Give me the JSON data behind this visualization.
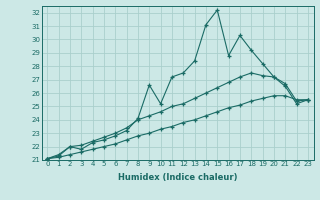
{
  "xlabel": "Humidex (Indice chaleur)",
  "background_color": "#cce8e6",
  "grid_color": "#aacfcc",
  "line_color": "#1a6b65",
  "xlim": [
    -0.5,
    23.5
  ],
  "ylim": [
    21,
    32.5
  ],
  "xticks": [
    0,
    1,
    2,
    3,
    4,
    5,
    6,
    7,
    8,
    9,
    10,
    11,
    12,
    13,
    14,
    15,
    16,
    17,
    18,
    19,
    20,
    21,
    22,
    23
  ],
  "yticks": [
    21,
    22,
    23,
    24,
    25,
    26,
    27,
    28,
    29,
    30,
    31,
    32
  ],
  "line1_x": [
    0,
    1,
    2,
    3,
    4,
    5,
    6,
    7,
    8,
    9,
    10,
    11,
    12,
    13,
    14,
    15,
    16,
    17,
    18,
    19,
    20,
    21,
    22,
    23
  ],
  "line1_y": [
    21.1,
    21.4,
    22.0,
    21.8,
    22.3,
    22.5,
    22.8,
    23.2,
    24.1,
    26.6,
    25.2,
    27.2,
    27.5,
    28.4,
    31.1,
    32.2,
    28.8,
    30.3,
    29.2,
    28.2,
    27.2,
    26.5,
    25.2,
    25.5
  ],
  "line2_x": [
    0,
    1,
    2,
    3,
    4,
    5,
    6,
    7,
    8,
    9,
    10,
    11,
    12,
    13,
    14,
    15,
    16,
    17,
    18,
    19,
    20,
    21,
    22,
    23
  ],
  "line2_y": [
    21.1,
    21.3,
    22.0,
    22.1,
    22.4,
    22.7,
    23.0,
    23.4,
    24.0,
    24.3,
    24.6,
    25.0,
    25.2,
    25.6,
    26.0,
    26.4,
    26.8,
    27.2,
    27.5,
    27.3,
    27.2,
    26.7,
    25.4,
    25.5
  ],
  "line3_x": [
    0,
    1,
    2,
    3,
    4,
    5,
    6,
    7,
    8,
    9,
    10,
    11,
    12,
    13,
    14,
    15,
    16,
    17,
    18,
    19,
    20,
    21,
    22,
    23
  ],
  "line3_y": [
    21.1,
    21.2,
    21.4,
    21.6,
    21.8,
    22.0,
    22.2,
    22.5,
    22.8,
    23.0,
    23.3,
    23.5,
    23.8,
    24.0,
    24.3,
    24.6,
    24.9,
    25.1,
    25.4,
    25.6,
    25.8,
    25.8,
    25.5,
    25.5
  ]
}
